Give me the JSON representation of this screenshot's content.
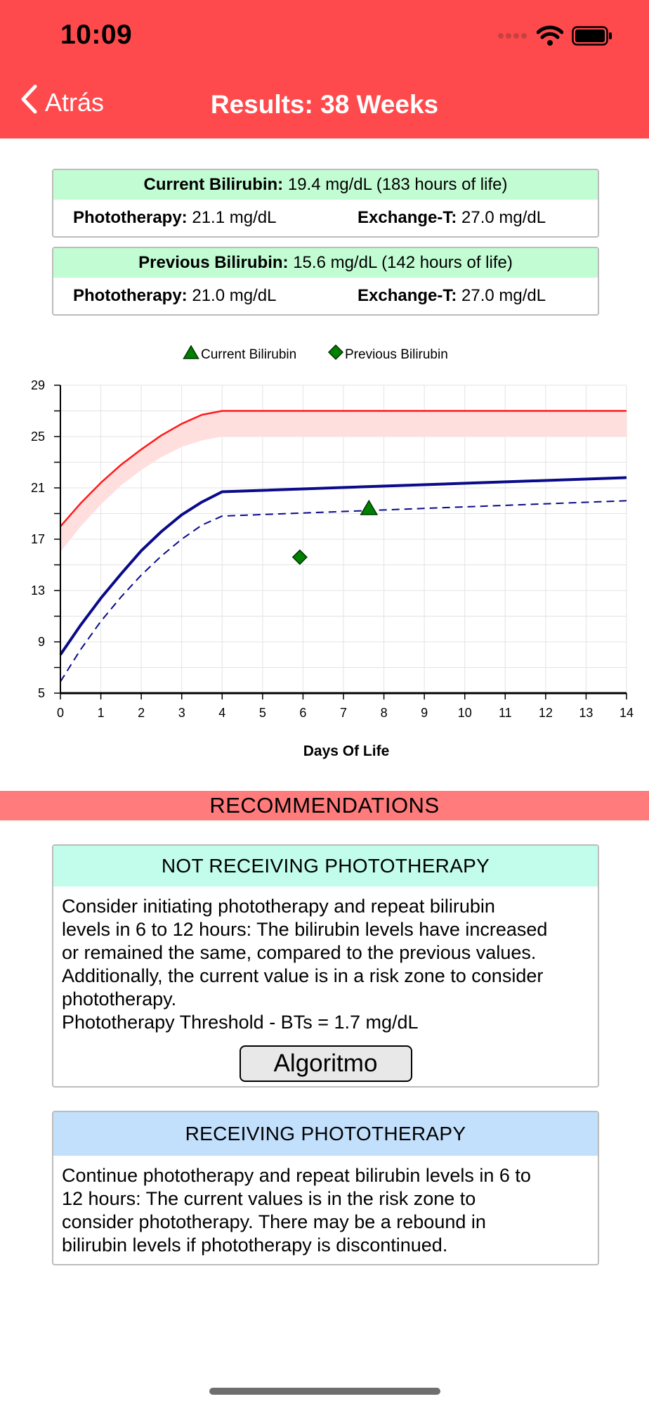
{
  "status_bar": {
    "time": "10:09"
  },
  "nav": {
    "back_label": "Atrás",
    "title": "Results: 38 Weeks"
  },
  "current_card": {
    "label": "Current Bilirubin:",
    "value": "19.4 mg/dL (183 hours of life)",
    "photo_label": "Phototherapy:",
    "photo_value": "21.1 mg/dL",
    "exch_label": "Exchange-T:",
    "exch_value": "27.0 mg/dL"
  },
  "previous_card": {
    "label": "Previous Bilirubin:",
    "value": "15.6 mg/dL (142 hours of life)",
    "photo_label": "Phototherapy:",
    "photo_value": "21.0 mg/dL",
    "exch_label": "Exchange-T:",
    "exch_value": "27.0 mg/dL"
  },
  "chart_data": {
    "type": "line",
    "xlabel": "Days Of Life",
    "ylabel": "",
    "xlim": [
      0,
      14
    ],
    "ylim": [
      5,
      29
    ],
    "x_ticks": [
      "0",
      "1",
      "2",
      "3",
      "4",
      "5",
      "6",
      "7",
      "8",
      "9",
      "10",
      "11",
      "12",
      "13",
      "14"
    ],
    "y_ticks": [
      "5",
      "9",
      "13",
      "17",
      "21",
      "25",
      "29"
    ],
    "grid": true,
    "legend_position": "top-center",
    "legend": [
      {
        "label": "Current Bilirubin",
        "marker": "triangle",
        "color": "#008000"
      },
      {
        "label": "Previous Bilirubin",
        "marker": "diamond",
        "color": "#008000"
      }
    ],
    "series": [
      {
        "style": "exchange-line",
        "color": "#ff1a1a",
        "x": [
          0,
          0.5,
          1,
          1.5,
          2,
          2.5,
          3,
          3.5,
          4,
          14
        ],
        "y": [
          18.0,
          19.8,
          21.4,
          22.8,
          24.0,
          25.1,
          26.0,
          26.7,
          27.0,
          27.0
        ]
      },
      {
        "style": "exchange-band-lower",
        "color": "#ffdede",
        "x": [
          0,
          0.5,
          1,
          1.5,
          2,
          2.5,
          3,
          3.5,
          4,
          14
        ],
        "y": [
          16.0,
          18.0,
          19.7,
          21.2,
          22.4,
          23.4,
          24.2,
          24.7,
          25.0,
          25.0
        ]
      },
      {
        "style": "phototherapy-solid",
        "color": "#0a0a8a",
        "x": [
          0,
          0.5,
          1,
          1.5,
          2,
          2.5,
          3,
          3.5,
          4,
          14
        ],
        "y": [
          8.0,
          10.3,
          12.4,
          14.3,
          16.1,
          17.6,
          18.9,
          19.9,
          20.7,
          21.8
        ]
      },
      {
        "style": "phototherapy-dashed",
        "color": "#0a0a8a",
        "x": [
          0,
          0.5,
          1,
          1.5,
          2,
          2.5,
          3,
          3.5,
          4,
          14
        ],
        "y": [
          5.9,
          8.4,
          10.6,
          12.5,
          14.2,
          15.7,
          17.0,
          18.1,
          18.8,
          20.0
        ]
      }
    ],
    "points": [
      {
        "name": "Current Bilirubin",
        "marker": "triangle",
        "x": 7.63,
        "y": 19.4
      },
      {
        "name": "Previous Bilirubin",
        "marker": "diamond",
        "x": 5.92,
        "y": 15.6
      }
    ]
  },
  "recommendations": {
    "title": "RECOMMENDATIONS",
    "not_receiving": {
      "title": "NOT RECEIVING PHOTOTHERAPY",
      "lines": [
        "Consider initiating phototherapy and repeat bilirubin",
        "levels in 6 to 12 hours: The bilirubin levels have increased",
        "or remained the same, compared to the previous values.",
        "Additionally, the current value is in a risk zone to consider",
        "phototherapy.",
        "Phototherapy Threshold - BTs = 1.7 mg/dL"
      ],
      "button": "Algoritmo",
      "header_color": "#c2fceb"
    },
    "receiving": {
      "title": "RECEIVING PHOTOTHERAPY",
      "lines": [
        "Continue phototherapy and repeat bilirubin levels in 6 to",
        "12 hours: The current values is in the risk zone to",
        "consider phototherapy. There may be a rebound in",
        "bilirubin levels if phototherapy is discontinued."
      ],
      "header_color": "#c2dffc"
    }
  },
  "colors": {
    "header": "#ff4a4d",
    "recommendations_bar": "#ff7b7c",
    "card_header": "#c2fcd3"
  }
}
